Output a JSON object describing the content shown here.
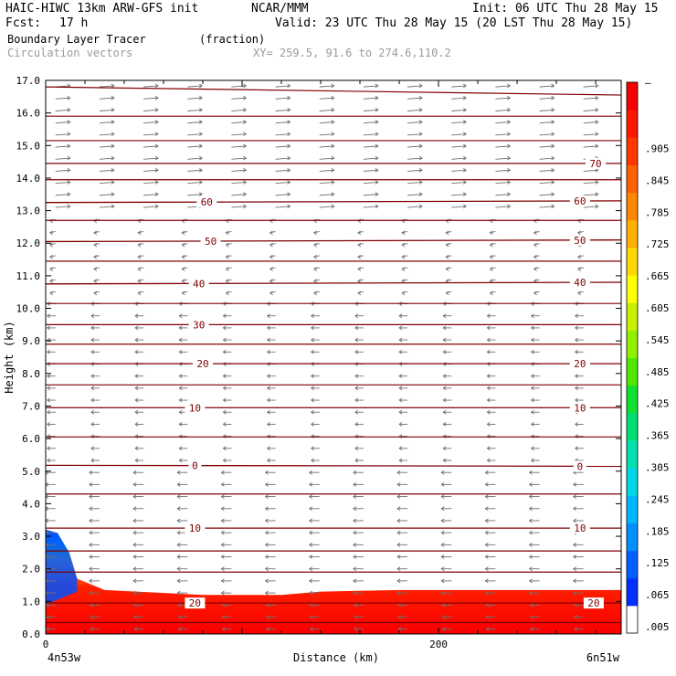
{
  "header": {
    "model": "HAIC-HIWC 13km ARW-GFS init",
    "org": "NCAR/MMM",
    "init": "Init: 06 UTC Thu 28 May 15",
    "fcst_label": "Fcst:",
    "fcst_value": "17 h",
    "valid": "Valid: 23 UTC Thu 28 May 15 (20 LST Thu 28 May 15)",
    "field1": "Boundary Layer Tracer",
    "field1_units": "(fraction)",
    "field2": "Circulation vectors",
    "xy": "XY= 259.5, 91.6 to 274.6,110.2"
  },
  "chart_data": {
    "type": "heatmap",
    "title": "Boundary Layer Tracer",
    "units": "(fraction)",
    "xlabel": "Distance (km)",
    "ylabel": "Height (km)",
    "xlim": [
      0,
      293
    ],
    "ylim": [
      0,
      17
    ],
    "x_ticks": [
      0,
      200
    ],
    "x_tick_labels": [
      "0",
      "200"
    ],
    "x_end_labels": [
      "4n53w",
      "6n51w"
    ],
    "y_ticks": [
      0,
      1,
      2,
      3,
      4,
      5,
      6,
      7,
      8,
      9,
      10,
      11,
      12,
      13,
      14,
      15,
      16,
      17
    ],
    "y_tick_labels": [
      "0.0",
      "1.0",
      "2.0",
      "3.0",
      "4.0",
      "5.0",
      "6.0",
      "7.0",
      "8.0",
      "9.0",
      "10.0",
      "11.0",
      "12.0",
      "13.0",
      "14.0",
      "15.0",
      "16.0",
      "17.0"
    ],
    "colorbar": {
      "labels": [
        ".005",
        ".065",
        ".125",
        ".185",
        ".245",
        ".305",
        ".365",
        ".425",
        ".485",
        ".545",
        ".605",
        ".665",
        ".725",
        ".785",
        ".845",
        ".905"
      ],
      "top_label": "–",
      "colors": [
        "#ffffff",
        "#0030ff",
        "#0060ff",
        "#0090ff",
        "#00b8ff",
        "#00d8e8",
        "#00e0b0",
        "#00e070",
        "#10e030",
        "#50e800",
        "#90f000",
        "#c8f000",
        "#ffff00",
        "#ffd800",
        "#ffb000",
        "#ff8800",
        "#ff6000",
        "#ff3800",
        "#ff1800",
        "#f80000"
      ]
    },
    "bl_top_km": [
      {
        "x": 0,
        "h": 3.2
      },
      {
        "x": 6,
        "h": 3.1
      },
      {
        "x": 12,
        "h": 2.5
      },
      {
        "x": 16,
        "h": 1.7
      },
      {
        "x": 30,
        "h": 1.35
      },
      {
        "x": 80,
        "h": 1.2
      },
      {
        "x": 120,
        "h": 1.2
      },
      {
        "x": 140,
        "h": 1.3
      },
      {
        "x": 180,
        "h": 1.35
      },
      {
        "x": 220,
        "h": 1.35
      },
      {
        "x": 260,
        "h": 1.35
      },
      {
        "x": 293,
        "h": 1.35
      }
    ],
    "temperature_contours": [
      {
        "label": "70",
        "left_h": 14.45,
        "right_h": 14.45,
        "label_positions": [
          280
        ]
      },
      {
        "label": "60",
        "left_h": 13.25,
        "right_h": 13.3,
        "label_positions": [
          82,
          272
        ]
      },
      {
        "label": "50",
        "left_h": 12.05,
        "right_h": 12.1,
        "label_positions": [
          84,
          272
        ]
      },
      {
        "label": "40",
        "left_h": 10.75,
        "right_h": 10.8,
        "label_positions": [
          78,
          272
        ]
      },
      {
        "label": "30",
        "left_h": 9.5,
        "right_h": 9.5,
        "label_positions": [
          78
        ]
      },
      {
        "label": "20",
        "left_h": 8.3,
        "right_h": 8.3,
        "label_positions": [
          80,
          272
        ]
      },
      {
        "label": "10",
        "left_h": 6.95,
        "right_h": 6.95,
        "label_positions": [
          76,
          272
        ]
      },
      {
        "label": "0",
        "left_h": 5.18,
        "right_h": 5.15,
        "label_positions": [
          76,
          272
        ]
      },
      {
        "label": "10",
        "left_h": 3.25,
        "right_h": 3.25,
        "label_positions": [
          76,
          272
        ]
      },
      {
        "label": "20",
        "left_h": 0.95,
        "right_h": 0.95,
        "label_positions": [
          76,
          279
        ]
      }
    ]
  }
}
